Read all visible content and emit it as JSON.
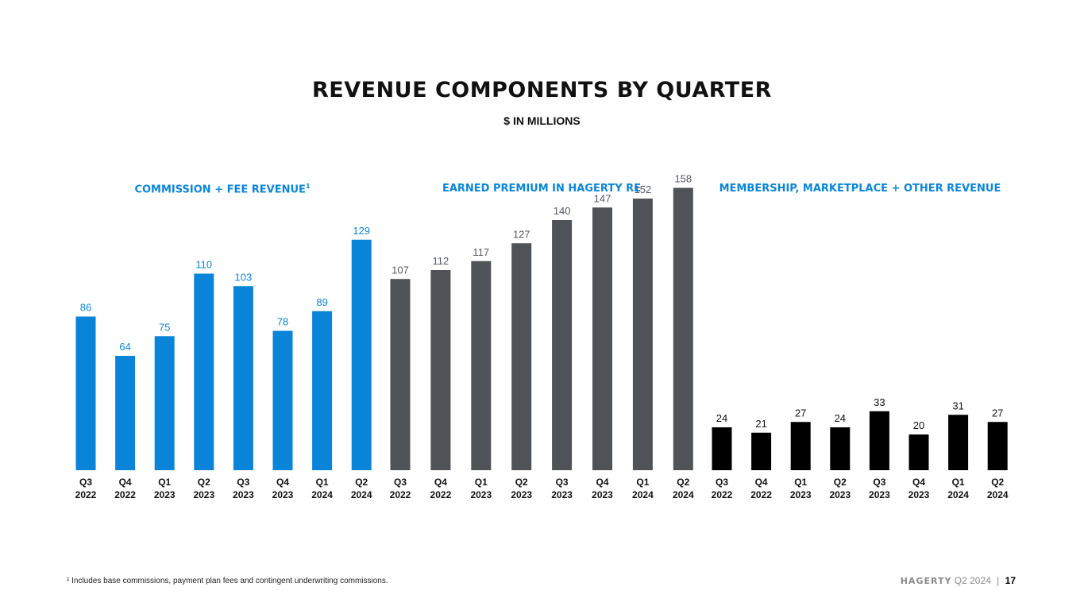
{
  "title": "REVENUE COMPONENTS BY QUARTER",
  "subtitle": "$ IN MILLIONS",
  "footnote": "¹ Includes base commissions, payment plan fees and contingent underwriting commissions.",
  "footer": {
    "brand": "HAGERTY",
    "period": "Q2 2024",
    "separator": "|",
    "page": "17"
  },
  "chart_data": [
    {
      "type": "bar",
      "title": "COMMISSION + FEE REVENUE",
      "title_superscript": "1",
      "color": "#0a84d8",
      "label_color": "#0a84d8",
      "categories": [
        "Q3 2022",
        "Q4 2022",
        "Q1 2023",
        "Q2 2023",
        "Q3 2023",
        "Q4 2023",
        "Q1 2024",
        "Q2 2024"
      ],
      "values": [
        86,
        64,
        75,
        110,
        103,
        78,
        89,
        129
      ]
    },
    {
      "type": "bar",
      "title": "EARNED PREMIUM IN HAGERTY RE",
      "color": "#4f5358",
      "label_color": "#555a60",
      "categories": [
        "Q3 2022",
        "Q4 2022",
        "Q1 2023",
        "Q2 2023",
        "Q3 2023",
        "Q4 2023",
        "Q1 2024",
        "Q2 2024"
      ],
      "values": [
        107,
        112,
        117,
        127,
        140,
        147,
        152,
        158
      ]
    },
    {
      "type": "bar",
      "title": "MEMBERSHIP, MARKETPLACE + OTHER REVENUE",
      "color": "#000000",
      "label_color": "#111111",
      "categories": [
        "Q3 2022",
        "Q4 2022",
        "Q1 2023",
        "Q2 2023",
        "Q3 2023",
        "Q4 2023",
        "Q1 2024",
        "Q2 2024"
      ],
      "values": [
        24,
        21,
        27,
        24,
        33,
        20,
        31,
        27
      ]
    }
  ]
}
